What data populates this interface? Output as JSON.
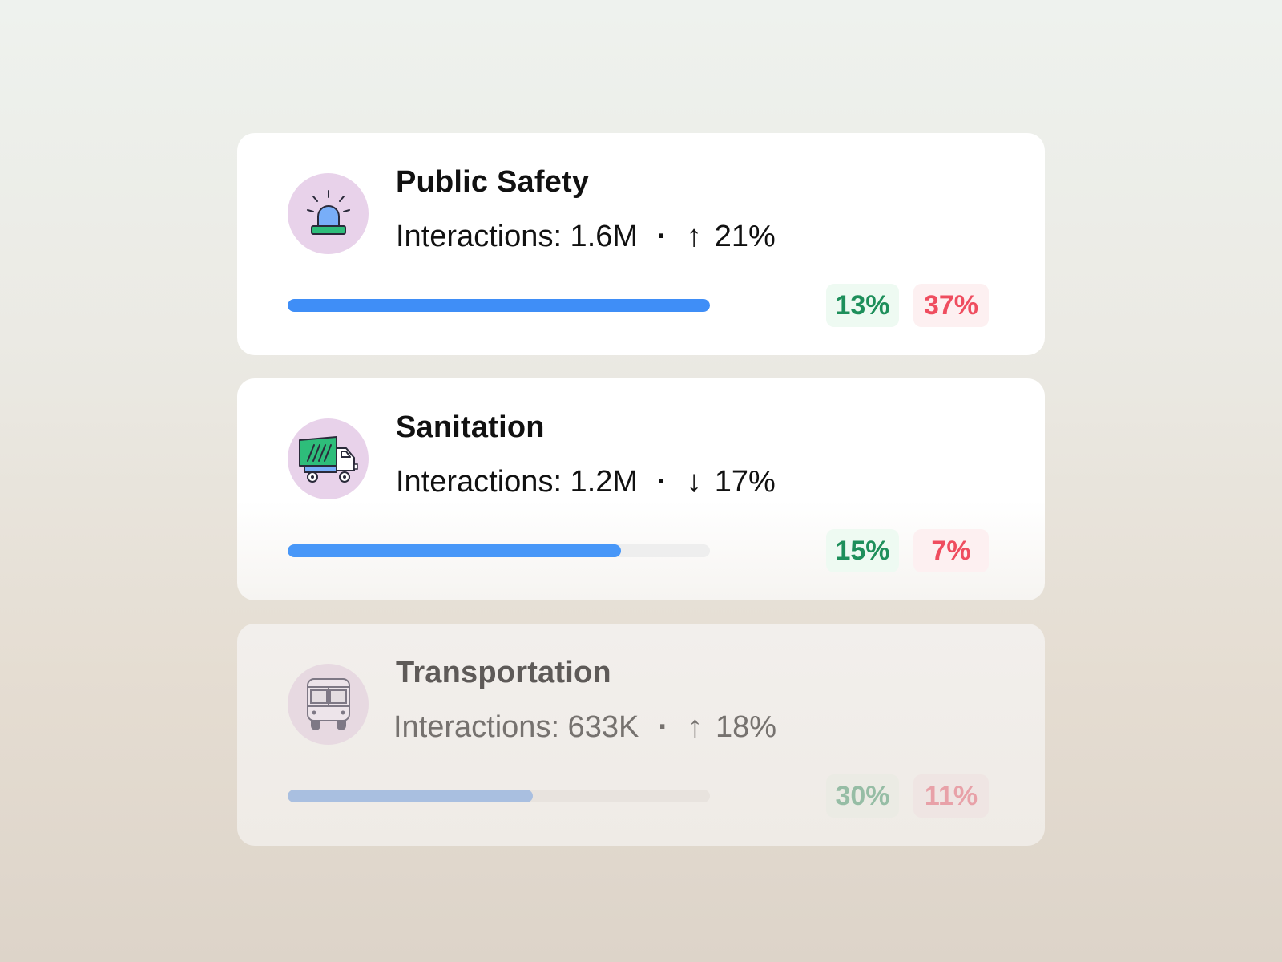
{
  "cards": [
    {
      "title": "Public Safety",
      "interactions_label": "Interactions: 1.6M",
      "separator": "·",
      "trend_arrow": "↑",
      "trend_value": "21%",
      "trend_direction": "up",
      "icon": "siren-icon",
      "progress": 1.0,
      "badge_positive": "13%",
      "badge_negative": "37%"
    },
    {
      "title": "Sanitation",
      "interactions_label": "Interactions: 1.2M",
      "separator": "·",
      "trend_arrow": "↓",
      "trend_value": "17%",
      "trend_direction": "down",
      "icon": "garbage-truck-icon",
      "progress": 0.79,
      "badge_positive": "15%",
      "badge_negative": "7%"
    },
    {
      "title": "Transportation",
      "interactions_label": "Interactions: 633K",
      "separator": "·",
      "trend_arrow": "↑",
      "trend_value": "18%",
      "trend_direction": "up",
      "icon": "bus-icon",
      "progress": 0.58,
      "badge_positive": "30%",
      "badge_negative": "11%"
    }
  ],
  "colors": {
    "progress_fill": "#3f8ef7",
    "positive_text": "#1e8f5b",
    "negative_text": "#ef4d5f",
    "icon_circle": "#e8d2ea"
  }
}
